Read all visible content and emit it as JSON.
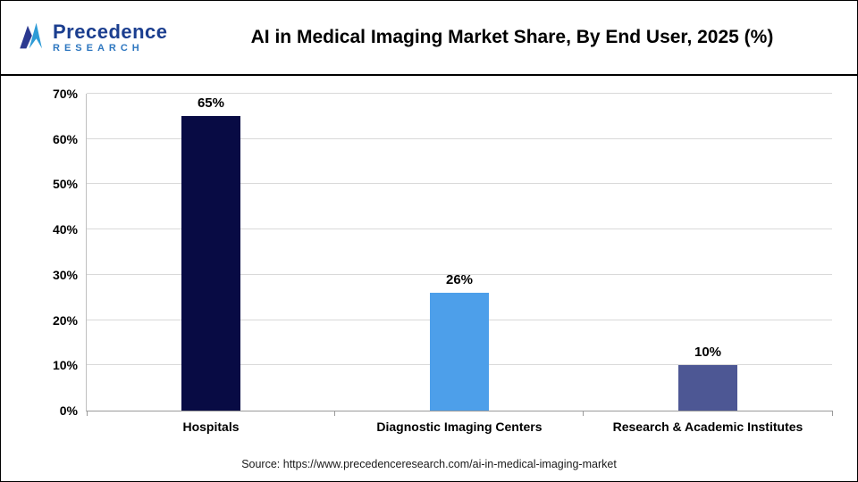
{
  "logo": {
    "line1": "Precedence",
    "line2": "RESEARCH",
    "dark_blue": "#1b3e8f",
    "light_blue": "#2e77c0"
  },
  "chart_data": {
    "type": "bar",
    "title": "AI in Medical Imaging Market Share, By End User, 2025 (%)",
    "categories": [
      "Hospitals",
      "Diagnostic Imaging Centers",
      "Research & Academic Institutes"
    ],
    "values": [
      65,
      26,
      10
    ],
    "value_labels": [
      "65%",
      "26%",
      "10%"
    ],
    "bar_colors": [
      "#080B44",
      "#4D9FEA",
      "#4D5794"
    ],
    "xlabel": "",
    "ylabel": "",
    "ylim": [
      0,
      70
    ],
    "yticks": [
      0,
      10,
      20,
      30,
      40,
      50,
      60,
      70
    ],
    "ytick_suffix": "%",
    "grid": "horizontal",
    "legend": "none"
  },
  "footer": {
    "source": "Source: https://www.precedenceresearch.com/ai-in-medical-imaging-market"
  }
}
